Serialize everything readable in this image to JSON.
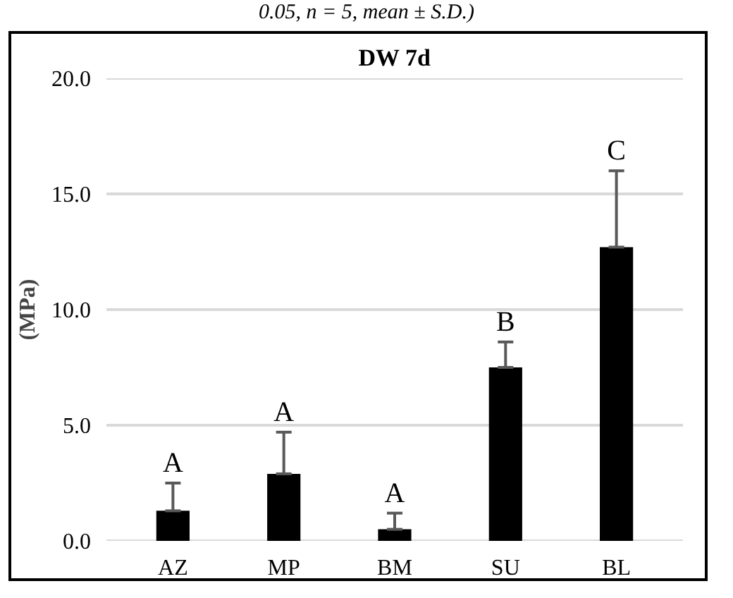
{
  "chart_data": {
    "type": "bar",
    "title": "DW 7d",
    "ylabel": "(MPa)",
    "categories": [
      "AZ",
      "MP",
      "BM",
      "SU",
      "BL"
    ],
    "values": [
      1.3,
      2.9,
      0.5,
      7.5,
      12.7
    ],
    "errors": [
      [
        1.3,
        2.5
      ],
      [
        2.9,
        4.7
      ],
      [
        0.5,
        1.2
      ],
      [
        7.5,
        8.6
      ],
      [
        12.7,
        16.0
      ]
    ],
    "color": "#000000",
    "ylim": [
      0,
      20
    ],
    "yticks": [
      {
        "value": 0,
        "label": "0.0"
      },
      {
        "value": 5,
        "label": "5.0"
      },
      {
        "value": 10,
        "label": "10.0"
      },
      {
        "value": 15,
        "label": "15.0"
      },
      {
        "value": 20,
        "label": "20.0"
      }
    ],
    "grid": "y",
    "value_labels": [
      "A",
      "A",
      "A",
      "B",
      "C"
    ],
    "annotations": [
      "0.05, n = 5, mean ± S.D.)"
    ]
  }
}
